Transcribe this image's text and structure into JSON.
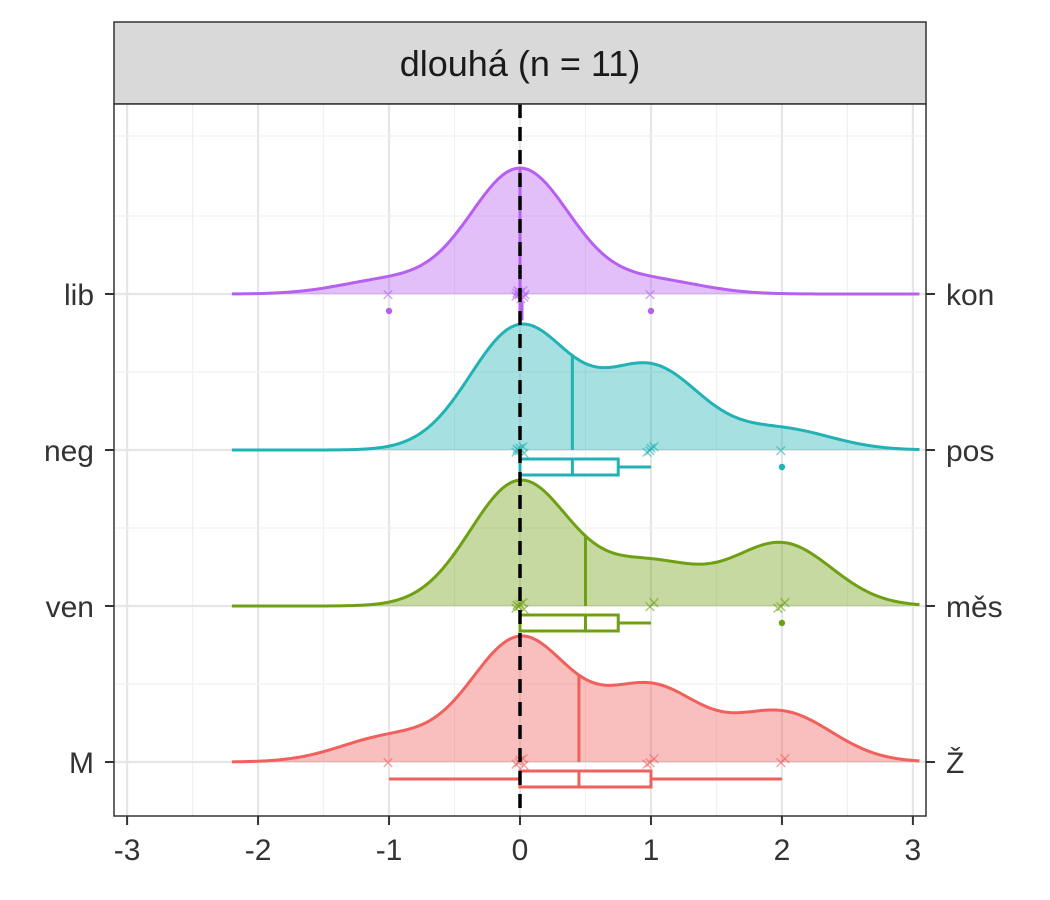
{
  "chart_data": {
    "type": "ridgeline",
    "facet_title": "dlouhá (n = 11)",
    "xlim": [
      -3.1,
      3.1
    ],
    "x_ticks": [
      "-3",
      "-2",
      "-1",
      "0",
      "1",
      "2",
      "3"
    ],
    "x_tick_values": [
      -3,
      -2,
      -1,
      0,
      1,
      2,
      3
    ],
    "reference_line_x": 0,
    "density_range": [
      -2.2,
      3.05
    ],
    "bandwidth": 0.38,
    "grid": true,
    "legend": "none",
    "rows": [
      {
        "left_label": "lib",
        "right_label": "kon",
        "color": "#B660F0",
        "points": [
          -1,
          0,
          0,
          0,
          0,
          0,
          0,
          0,
          0,
          0,
          1
        ],
        "median": 0,
        "q1": 0,
        "q3": 0,
        "whisker_low": 0,
        "whisker_high": 0,
        "outliers": [
          -1,
          1
        ]
      },
      {
        "left_label": "neg",
        "right_label": "pos",
        "color": "#22B1B4",
        "points": [
          0,
          0,
          0,
          0,
          0,
          0,
          1,
          1,
          1,
          1,
          2
        ],
        "median": 0.4,
        "q1": 0,
        "q3": 0.75,
        "whisker_low": 0,
        "whisker_high": 1,
        "outliers": [
          2
        ]
      },
      {
        "left_label": "ven",
        "right_label": "měs",
        "color": "#6FA014",
        "points": [
          0,
          0,
          0,
          0,
          0,
          0,
          1,
          1,
          2,
          2,
          2
        ],
        "median": 0.5,
        "q1": 0,
        "q3": 0.75,
        "whisker_low": 0,
        "whisker_high": 1,
        "outliers": [
          2
        ]
      },
      {
        "left_label": "M",
        "right_label": "Ž",
        "color": "#F0605D",
        "points": [
          -1,
          0,
          0,
          0,
          0,
          0,
          1,
          1,
          1,
          2,
          2
        ],
        "median": 0.45,
        "q1": 0,
        "q3": 1,
        "whisker_low": -1,
        "whisker_high": 2,
        "outliers": []
      }
    ]
  }
}
